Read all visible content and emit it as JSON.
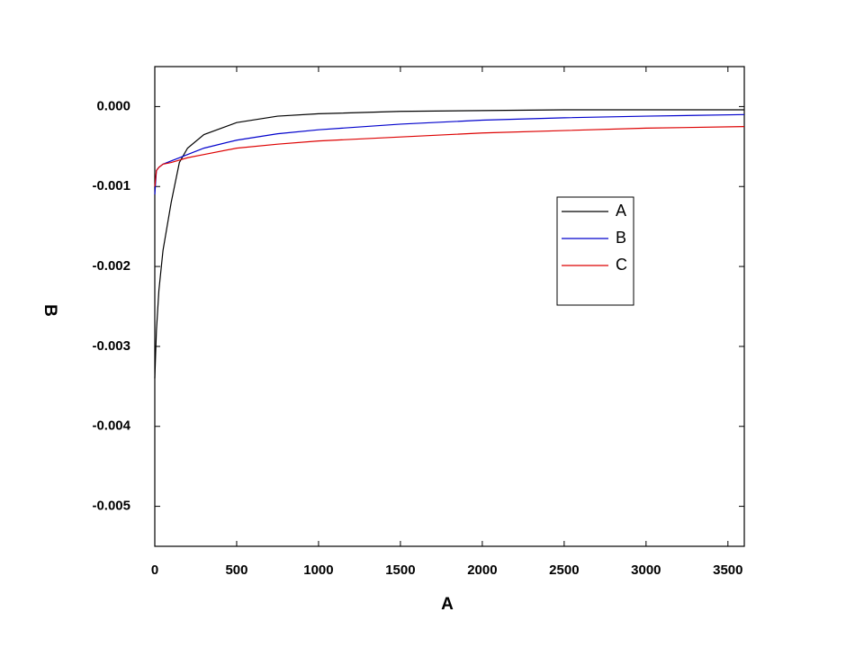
{
  "chart_data": {
    "type": "line",
    "x_label": "A",
    "y_label": "B",
    "x": [
      0,
      10,
      25,
      50,
      100,
      150,
      200,
      300,
      500,
      750,
      1000,
      1500,
      2000,
      2500,
      3000,
      3600
    ],
    "series": [
      {
        "name": "A",
        "color": "#000000",
        "values": [
          -0.0034,
          -0.0028,
          -0.0023,
          -0.0018,
          -0.0012,
          -0.0007,
          -0.00052,
          -0.00035,
          -0.0002,
          -0.00012,
          -9e-05,
          -6e-05,
          -5e-05,
          -4e-05,
          -4e-05,
          -4e-05
        ]
      },
      {
        "name": "B",
        "color": "#0000cc",
        "values": [
          -0.0011,
          -0.0008,
          -0.00076,
          -0.00072,
          -0.00068,
          -0.00064,
          -0.0006,
          -0.00052,
          -0.00042,
          -0.00034,
          -0.00029,
          -0.00022,
          -0.00017,
          -0.00014,
          -0.00012,
          -0.0001
        ]
      },
      {
        "name": "C",
        "color": "#dd0000",
        "values": [
          -0.001,
          -0.0008,
          -0.00076,
          -0.00072,
          -0.0007,
          -0.00067,
          -0.00064,
          -0.0006,
          -0.00052,
          -0.00047,
          -0.00043,
          -0.00038,
          -0.00033,
          -0.0003,
          -0.00027,
          -0.00025
        ]
      }
    ],
    "xlim": [
      0,
      3600
    ],
    "xticks": [
      0,
      500,
      1000,
      1500,
      2000,
      2500,
      3000,
      3500
    ],
    "ylim": [
      -0.0055,
      0.0005
    ],
    "yticks": [
      {
        "value": -0.005,
        "label": "-0.005"
      },
      {
        "value": -0.004,
        "label": "-0.004"
      },
      {
        "value": -0.003,
        "label": "-0.003"
      },
      {
        "value": -0.002,
        "label": "-0.002"
      },
      {
        "value": -0.001,
        "label": "-0.001"
      },
      {
        "value": 0,
        "label": "0.000"
      }
    ],
    "grid": false
  }
}
